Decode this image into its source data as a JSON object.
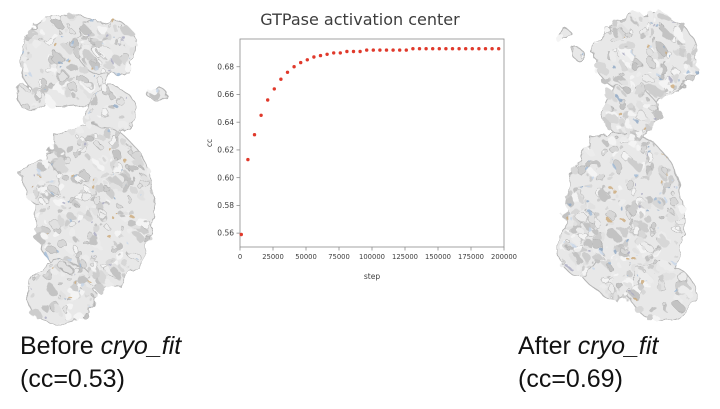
{
  "chart_data": {
    "type": "scatter",
    "title": "GTPase activation center",
    "xlabel": "step",
    "ylabel": "cc",
    "xlim": [
      0,
      200000
    ],
    "ylim": [
      0.55,
      0.7
    ],
    "x_ticks": [
      0,
      25000,
      50000,
      75000,
      100000,
      125000,
      150000,
      175000,
      200000
    ],
    "y_ticks": [
      0.56,
      0.58,
      0.6,
      0.62,
      0.64,
      0.66,
      0.68
    ],
    "grid": false,
    "legend": false,
    "marker_color": "#e0392b",
    "series": [
      {
        "name": "cc",
        "x": [
          1000,
          6000,
          11000,
          16000,
          21000,
          26000,
          31000,
          36000,
          41000,
          46000,
          51000,
          56000,
          61000,
          66000,
          71000,
          76000,
          81000,
          86000,
          91000,
          96000,
          101000,
          106000,
          111000,
          116000,
          121000,
          126000,
          131000,
          136000,
          141000,
          146000,
          151000,
          156000,
          161000,
          166000,
          171000,
          176000,
          181000,
          186000,
          191000,
          196000
        ],
        "y": [
          0.559,
          0.613,
          0.631,
          0.645,
          0.656,
          0.664,
          0.671,
          0.676,
          0.68,
          0.683,
          0.685,
          0.687,
          0.688,
          0.689,
          0.69,
          0.69,
          0.691,
          0.691,
          0.691,
          0.692,
          0.692,
          0.692,
          0.692,
          0.692,
          0.692,
          0.692,
          0.693,
          0.693,
          0.693,
          0.693,
          0.693,
          0.693,
          0.693,
          0.693,
          0.693,
          0.693,
          0.693,
          0.693,
          0.693,
          0.693
        ]
      }
    ]
  },
  "captions": {
    "left": {
      "prefix": "Before ",
      "italic": "cryo_fit",
      "line2": "(cc=0.53)"
    },
    "right": {
      "prefix": "After ",
      "italic": "cryo_fit",
      "line2": "(cc=0.69)"
    }
  }
}
